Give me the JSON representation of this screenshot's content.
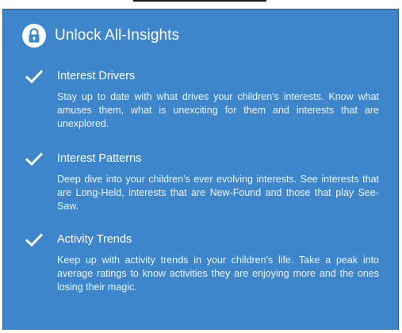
{
  "card": {
    "title": "Unlock All-Insights",
    "icon": "lock-icon",
    "accent_color": "#3d86cc"
  },
  "features": [
    {
      "icon": "check-icon",
      "title": "Interest Drivers",
      "description": "Stay up to date with what drives your children's interests. Know what amuses them, what is unexciting for them and interests that are unexplored."
    },
    {
      "icon": "check-icon",
      "title": "Interest Patterns",
      "description": "Deep dive into your children's ever evolving interests. See interests that are Long-Held, interests that are New-Found and those that play See-Saw."
    },
    {
      "icon": "check-icon",
      "title": "Activity Trends",
      "description": "Keep up with activity trends in your children's life. Take a peak into average ratings to know activities they are enjoying more and the ones losing their magic."
    }
  ]
}
